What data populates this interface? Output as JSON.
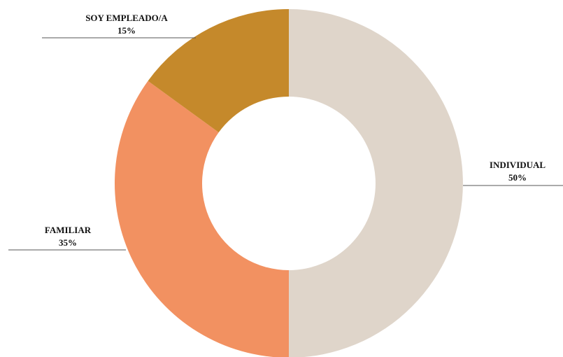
{
  "chart_data": {
    "type": "pie",
    "donut": true,
    "title": "",
    "legend": "none",
    "slices": [
      {
        "label": "INDIVIDUAL",
        "value": 50,
        "value_label": "50%",
        "color": "#dfd5ca"
      },
      {
        "label": "FAMILIAR",
        "value": 35,
        "value_label": "35%",
        "color": "#f29161"
      },
      {
        "label": "SOY EMPLEADO/A",
        "value": 15,
        "value_label": "15%",
        "color": "#c5892b"
      }
    ]
  }
}
